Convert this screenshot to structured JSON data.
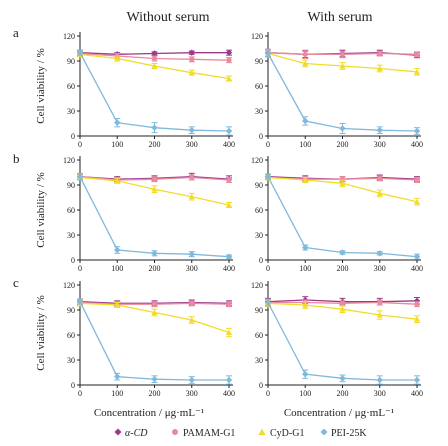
{
  "figure": {
    "column_titles": [
      "Without serum",
      "With serum"
    ],
    "row_letters": [
      "a",
      "b",
      "c"
    ],
    "ylabel": "Cell viability / %",
    "xlabel": "Concentration / μg·mL⁻¹"
  },
  "legend": [
    {
      "name": "α-CD",
      "color": "#9b3a8c",
      "marker": "diamond"
    },
    {
      "name": "PAMAM-G1",
      "color": "#e98aa0",
      "marker": "circle"
    },
    {
      "name": "CyD-G1",
      "color": "#f2dc2a",
      "marker": "triangle"
    },
    {
      "name": "PEI-25K",
      "color": "#7fb9dc",
      "marker": "diamond"
    }
  ],
  "chart_data": [
    {
      "type": "line",
      "row": "a",
      "column": "Without serum",
      "x": [
        0,
        100,
        200,
        300,
        400
      ],
      "xlim": [
        0,
        400
      ],
      "ylim": [
        0,
        120
      ],
      "xticks": [
        0,
        100,
        200,
        300,
        400
      ],
      "yticks": [
        0,
        30,
        60,
        90,
        120
      ],
      "series": [
        {
          "name": "α-CD",
          "values": [
            100,
            98,
            99,
            100,
            100
          ],
          "err": [
            3,
            2,
            2,
            2,
            3
          ]
        },
        {
          "name": "PAMAM-G1",
          "values": [
            99,
            96,
            93,
            92,
            91
          ],
          "err": [
            3,
            3,
            3,
            3,
            3
          ]
        },
        {
          "name": "CyD-G1",
          "values": [
            98,
            93,
            84,
            76,
            69
          ],
          "err": [
            3,
            3,
            3,
            3,
            3
          ]
        },
        {
          "name": "PEI-25K",
          "values": [
            100,
            16,
            10,
            7,
            6
          ],
          "err": [
            3,
            5,
            6,
            4,
            5
          ]
        }
      ]
    },
    {
      "type": "line",
      "row": "a",
      "column": "With serum",
      "x": [
        0,
        100,
        200,
        300,
        400
      ],
      "xlim": [
        0,
        400
      ],
      "ylim": [
        0,
        120
      ],
      "xticks": [
        0,
        100,
        200,
        300,
        400
      ],
      "yticks": [
        0,
        30,
        60,
        90,
        120
      ],
      "series": [
        {
          "name": "α-CD",
          "values": [
            100,
            98,
            99,
            100,
            97
          ],
          "err": [
            4,
            4,
            4,
            3,
            3
          ]
        },
        {
          "name": "PAMAM-G1",
          "values": [
            100,
            98,
            98,
            99,
            98
          ],
          "err": [
            4,
            5,
            4,
            3,
            3
          ]
        },
        {
          "name": "CyD-G1",
          "values": [
            99,
            87,
            84,
            81,
            77
          ],
          "err": [
            4,
            4,
            4,
            4,
            4
          ]
        },
        {
          "name": "PEI-25K",
          "values": [
            99,
            18,
            9,
            7,
            6
          ],
          "err": [
            4,
            5,
            6,
            4,
            4
          ]
        }
      ]
    },
    {
      "type": "line",
      "row": "b",
      "column": "Without serum",
      "x": [
        0,
        100,
        200,
        300,
        400
      ],
      "xlim": [
        0,
        400
      ],
      "ylim": [
        0,
        120
      ],
      "xticks": [
        0,
        100,
        200,
        300,
        400
      ],
      "yticks": [
        0,
        30,
        60,
        90,
        120
      ],
      "series": [
        {
          "name": "α-CD",
          "values": [
            100,
            97,
            98,
            100,
            97
          ],
          "err": [
            3,
            3,
            3,
            4,
            4
          ]
        },
        {
          "name": "PAMAM-G1",
          "values": [
            100,
            96,
            97,
            99,
            96
          ],
          "err": [
            3,
            3,
            3,
            3,
            3
          ]
        },
        {
          "name": "CyD-G1",
          "values": [
            99,
            95,
            85,
            76,
            66
          ],
          "err": [
            3,
            3,
            4,
            4,
            3
          ]
        },
        {
          "name": "PEI-25K",
          "values": [
            100,
            12,
            8,
            7,
            4
          ],
          "err": [
            4,
            4,
            3,
            3,
            2
          ]
        }
      ]
    },
    {
      "type": "line",
      "row": "b",
      "column": "With serum",
      "x": [
        0,
        100,
        200,
        300,
        400
      ],
      "xlim": [
        0,
        400
      ],
      "ylim": [
        0,
        120
      ],
      "xticks": [
        0,
        100,
        200,
        300,
        400
      ],
      "yticks": [
        0,
        30,
        60,
        90,
        120
      ],
      "series": [
        {
          "name": "α-CD",
          "values": [
            100,
            98,
            97,
            99,
            97
          ],
          "err": [
            3,
            3,
            3,
            3,
            3
          ]
        },
        {
          "name": "PAMAM-G1",
          "values": [
            99,
            97,
            97,
            98,
            96
          ],
          "err": [
            3,
            3,
            3,
            3,
            3
          ]
        },
        {
          "name": "CyD-G1",
          "values": [
            99,
            96,
            92,
            80,
            70
          ],
          "err": [
            3,
            3,
            4,
            4,
            4
          ]
        },
        {
          "name": "PEI-25K",
          "values": [
            100,
            15,
            9,
            8,
            4
          ],
          "err": [
            3,
            3,
            2,
            2,
            3
          ]
        }
      ]
    },
    {
      "type": "line",
      "row": "c",
      "column": "Without serum",
      "x": [
        0,
        100,
        200,
        300,
        400
      ],
      "xlim": [
        0,
        400
      ],
      "ylim": [
        0,
        120
      ],
      "xticks": [
        0,
        100,
        200,
        300,
        400
      ],
      "yticks": [
        0,
        30,
        60,
        90,
        120
      ],
      "series": [
        {
          "name": "α-CD",
          "values": [
            100,
            98,
            98,
            99,
            98
          ],
          "err": [
            3,
            3,
            3,
            3,
            3
          ]
        },
        {
          "name": "PAMAM-G1",
          "values": [
            99,
            97,
            97,
            98,
            97
          ],
          "err": [
            3,
            3,
            3,
            3,
            3
          ]
        },
        {
          "name": "CyD-G1",
          "values": [
            98,
            96,
            87,
            78,
            63
          ],
          "err": [
            3,
            3,
            4,
            4,
            5
          ]
        },
        {
          "name": "PEI-25K",
          "values": [
            100,
            10,
            7,
            6,
            6
          ],
          "err": [
            3,
            4,
            4,
            4,
            5
          ]
        }
      ]
    },
    {
      "type": "line",
      "row": "c",
      "column": "With serum",
      "x": [
        0,
        100,
        200,
        300,
        400
      ],
      "xlim": [
        0,
        400
      ],
      "ylim": [
        0,
        120
      ],
      "xticks": [
        0,
        100,
        200,
        300,
        400
      ],
      "yticks": [
        0,
        30,
        60,
        90,
        120
      ],
      "series": [
        {
          "name": "α-CD",
          "values": [
            100,
            102,
            100,
            100,
            101
          ],
          "err": [
            4,
            4,
            4,
            4,
            4
          ]
        },
        {
          "name": "PAMAM-G1",
          "values": [
            99,
            99,
            98,
            99,
            97
          ],
          "err": [
            3,
            3,
            3,
            3,
            3
          ]
        },
        {
          "name": "CyD-G1",
          "values": [
            98,
            96,
            91,
            84,
            79
          ],
          "err": [
            4,
            4,
            4,
            5,
            4
          ]
        },
        {
          "name": "PEI-25K",
          "values": [
            99,
            13,
            8,
            6,
            6
          ],
          "err": [
            4,
            5,
            4,
            5,
            5
          ]
        }
      ]
    }
  ]
}
